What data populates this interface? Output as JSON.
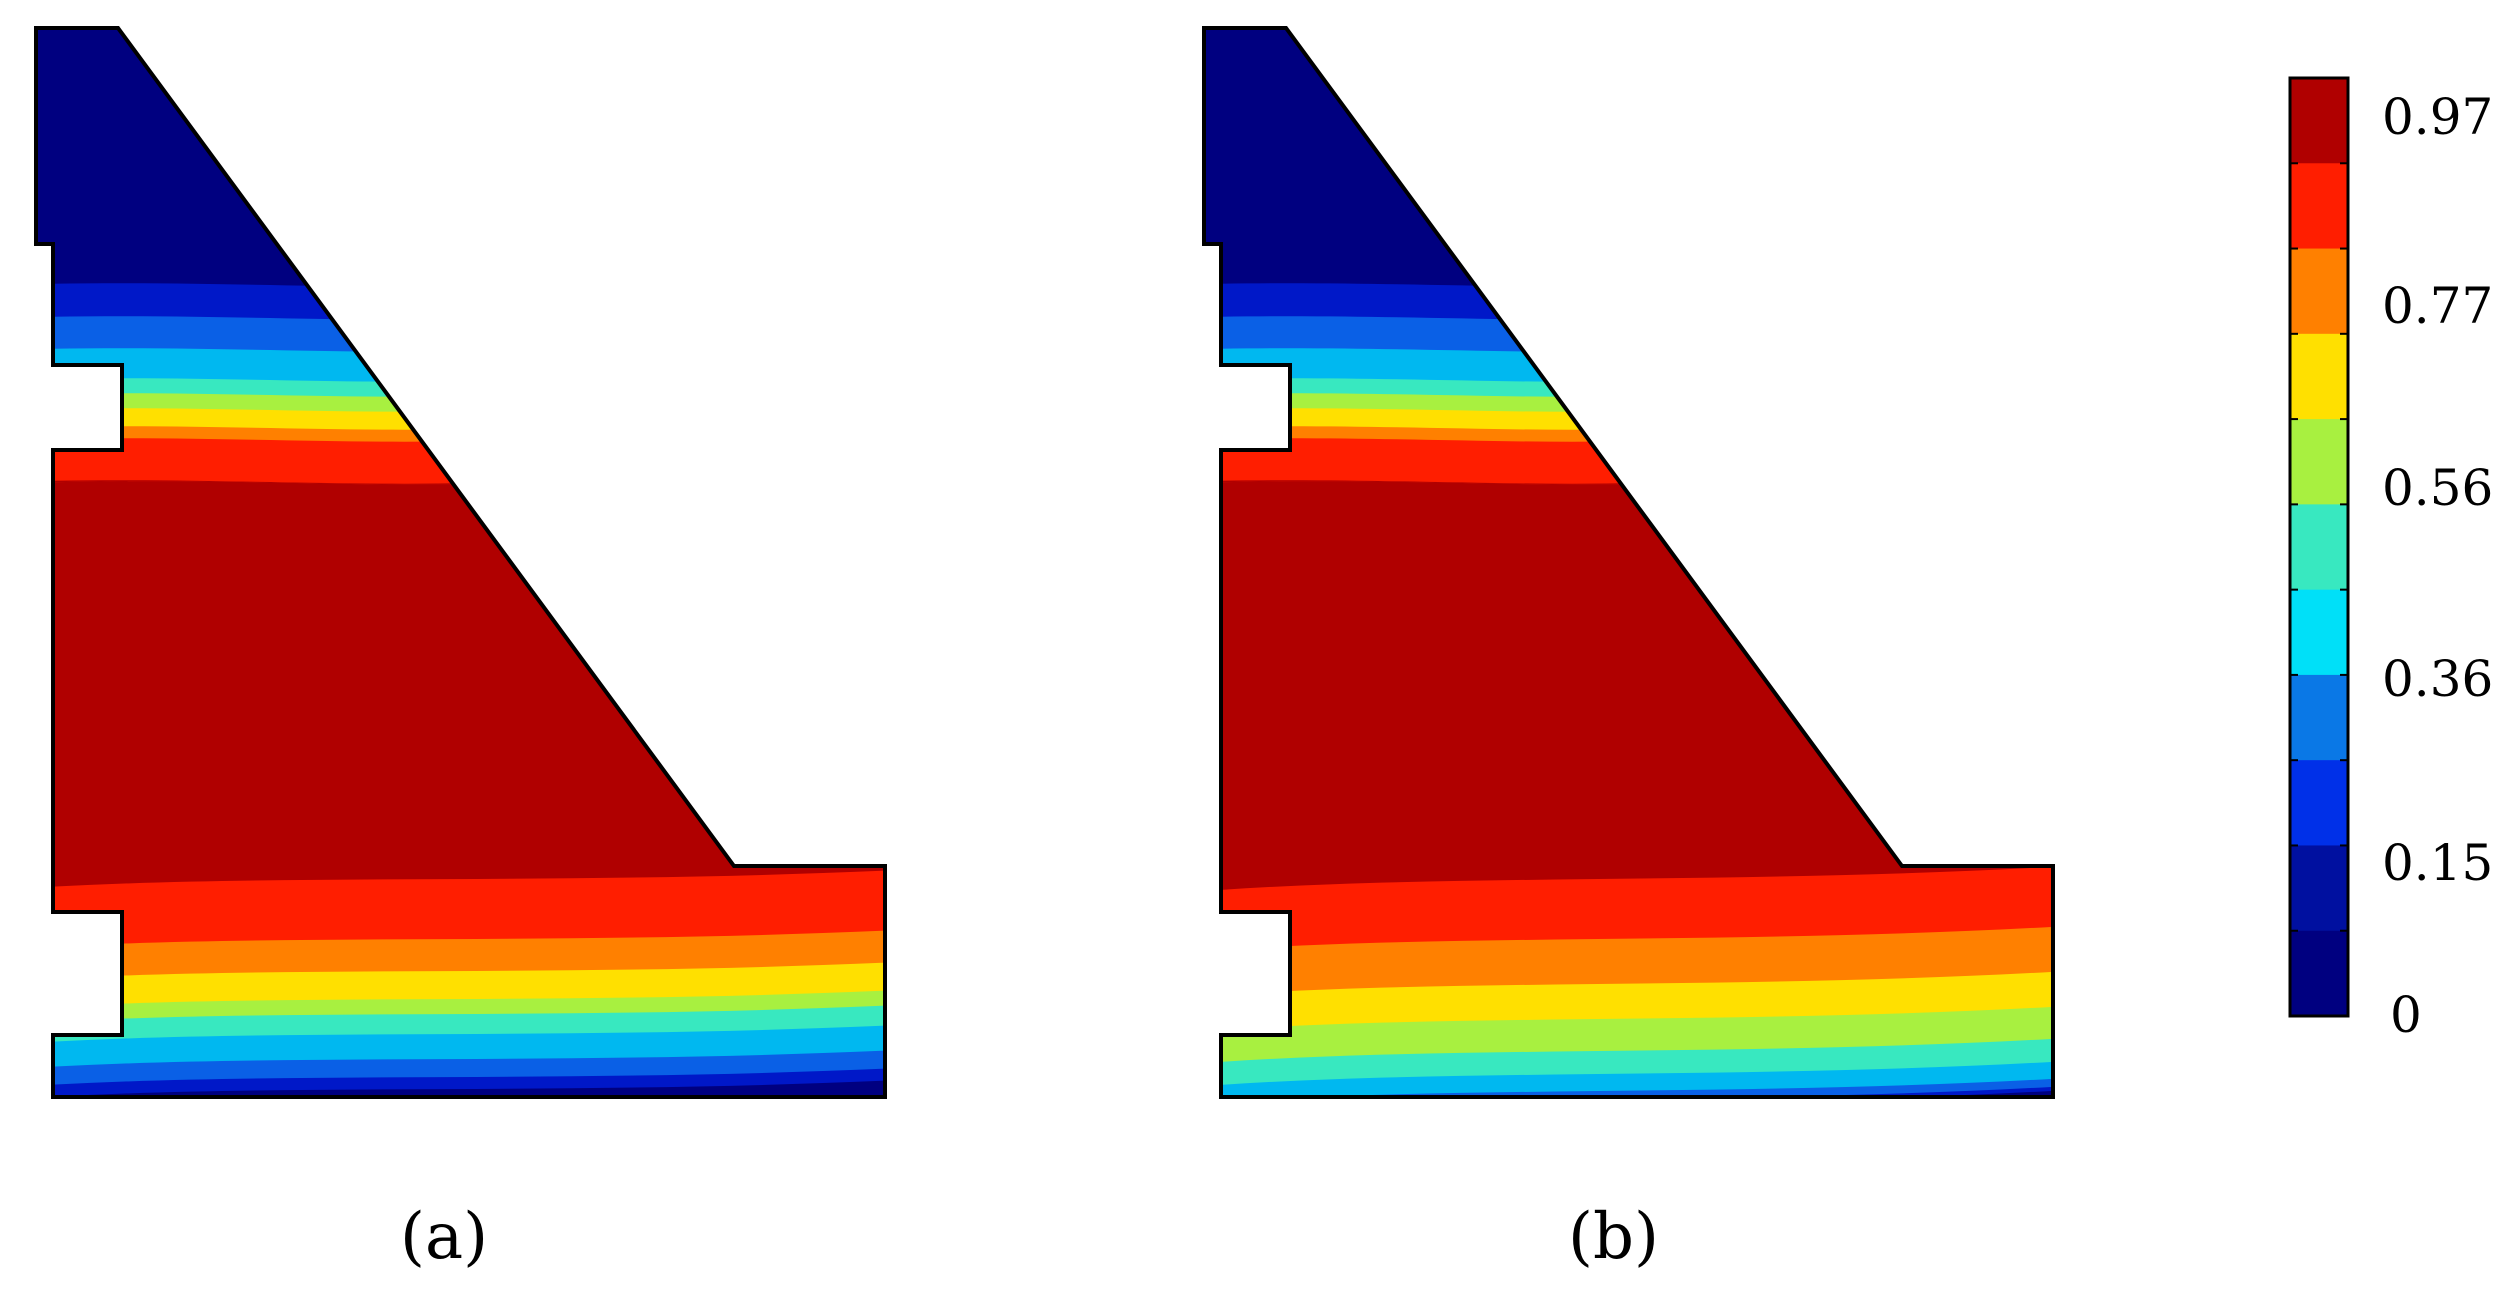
{
  "panels": [
    {
      "label": "(a)",
      "bands": [
        {
          "color": "#000080"
        },
        {
          "color": "#0018c8"
        },
        {
          "color": "#0a60e6"
        },
        {
          "color": "#00b8f0"
        },
        {
          "color": "#38e8c0"
        },
        {
          "color": "#a8f040"
        },
        {
          "color": "#ffe000"
        },
        {
          "color": "#ff8000"
        },
        {
          "color": "#ff1e00"
        },
        {
          "color": "#b00000"
        }
      ]
    },
    {
      "label": "(b)",
      "bands": [
        {
          "color": "#000080"
        },
        {
          "color": "#0018c8"
        },
        {
          "color": "#0a60e6"
        },
        {
          "color": "#00b8f0"
        },
        {
          "color": "#38e8c0"
        },
        {
          "color": "#a8f040"
        },
        {
          "color": "#ffe000"
        },
        {
          "color": "#ff8000"
        },
        {
          "color": "#ff1e00"
        },
        {
          "color": "#b00000"
        }
      ]
    }
  ],
  "colorbar": {
    "tick_labels": [
      "0.97",
      "0.77",
      "0.56",
      "0.36",
      "0.15",
      "0"
    ],
    "colors_top_to_bottom": [
      "#b00000",
      "#ff1e00",
      "#ff8000",
      "#ffe000",
      "#a8f040",
      "#38e8c0",
      "#00e0f8",
      "#0a78e6",
      "#0030e8",
      "#0010a0",
      "#000080"
    ]
  }
}
